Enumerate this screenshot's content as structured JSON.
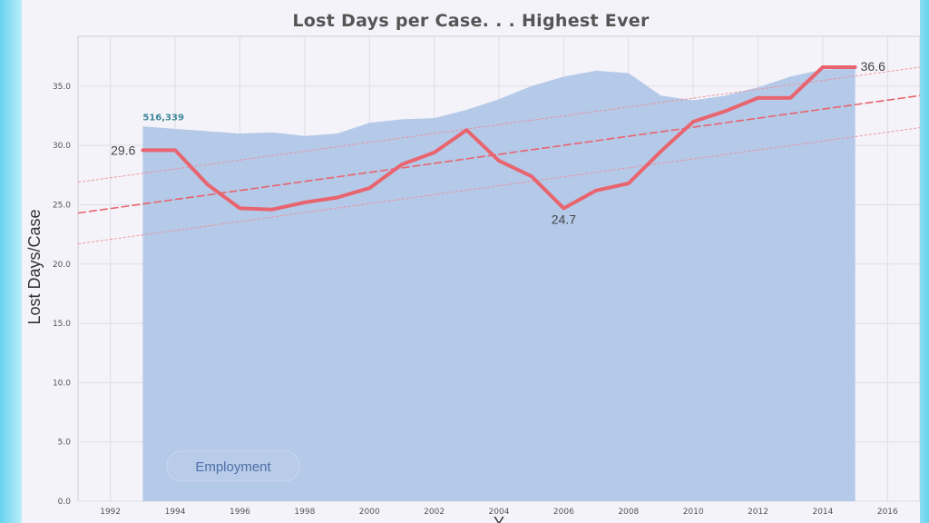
{
  "chart_data": {
    "type": "line",
    "title": "Lost Days per Case. . . Highest Ever",
    "ylabel": "Lost Days/Case",
    "xlabel": "Y",
    "xlim": [
      1991,
      2017
    ],
    "ylim": [
      0,
      39.2
    ],
    "y_ticks": [
      "0.0",
      "5.0",
      "10.0",
      "15.0",
      "20.0",
      "25.0",
      "30.0",
      "35.0"
    ],
    "x_ticks": [
      "1992",
      "1994",
      "1996",
      "1998",
      "2000",
      "2002",
      "2004",
      "2006",
      "2008",
      "2010",
      "2012",
      "2014",
      "2016"
    ],
    "grid": true,
    "series": [
      {
        "values": [
          {
            "x": 1993,
            "y": 29.6
          },
          {
            "x": 1994,
            "y": 29.6
          },
          {
            "x": 1995,
            "y": 26.7
          },
          {
            "x": 1996,
            "y": 24.7
          },
          {
            "x": 1997,
            "y": 24.6
          },
          {
            "x": 1998,
            "y": 25.2
          },
          {
            "x": 1999,
            "y": 25.6
          },
          {
            "x": 2000,
            "y": 26.4
          },
          {
            "x": 2001,
            "y": 28.4
          },
          {
            "x": 2002,
            "y": 29.4
          },
          {
            "x": 2003,
            "y": 31.3
          },
          {
            "x": 2004,
            "y": 28.7
          },
          {
            "x": 2005,
            "y": 27.4
          },
          {
            "x": 2006,
            "y": 24.7
          },
          {
            "x": 2007,
            "y": 26.2
          },
          {
            "x": 2008,
            "y": 26.8
          },
          {
            "x": 2009,
            "y": 29.5
          },
          {
            "x": 2010,
            "y": 32.0
          },
          {
            "x": 2011,
            "y": 32.9
          },
          {
            "x": 2012,
            "y": 34.0
          },
          {
            "x": 2013,
            "y": 34.0
          },
          {
            "x": 2014,
            "y": 36.6
          },
          {
            "x": 2015,
            "y": 36.6
          }
        ],
        "color": "#e8646e"
      },
      {
        "name": "Employment",
        "type": "area",
        "values": [
          {
            "x": 1993,
            "y": 31.6
          },
          {
            "x": 1994,
            "y": 31.4
          },
          {
            "x": 1995,
            "y": 31.2
          },
          {
            "x": 1996,
            "y": 31.0
          },
          {
            "x": 1997,
            "y": 31.1
          },
          {
            "x": 1998,
            "y": 30.8
          },
          {
            "x": 1999,
            "y": 31.0
          },
          {
            "x": 2000,
            "y": 31.9
          },
          {
            "x": 2001,
            "y": 32.2
          },
          {
            "x": 2002,
            "y": 32.3
          },
          {
            "x": 2003,
            "y": 33.0
          },
          {
            "x": 2004,
            "y": 33.9
          },
          {
            "x": 2005,
            "y": 35.0
          },
          {
            "x": 2006,
            "y": 35.8
          },
          {
            "x": 2007,
            "y": 36.3
          },
          {
            "x": 2008,
            "y": 36.1
          },
          {
            "x": 2009,
            "y": 34.2
          },
          {
            "x": 2010,
            "y": 33.8
          },
          {
            "x": 2011,
            "y": 34.2
          },
          {
            "x": 2012,
            "y": 34.9
          },
          {
            "x": 2013,
            "y": 35.8
          },
          {
            "x": 2014,
            "y": 36.4
          },
          {
            "x": 2015,
            "y": 36.5
          }
        ],
        "color": "#b5c9e8"
      }
    ],
    "trend_lines": [
      {
        "kind": "trend",
        "x": [
          1991,
          2017
        ],
        "y": [
          24.3,
          34.2
        ],
        "color": "#e8646e"
      },
      {
        "kind": "upper",
        "x": [
          1991,
          2017
        ],
        "y": [
          26.9,
          36.6
        ],
        "color": "#ef8e95"
      },
      {
        "kind": "lower",
        "x": [
          1991,
          2017
        ],
        "y": [
          21.7,
          31.5
        ],
        "color": "#ef8e95"
      }
    ],
    "point_labels": [
      {
        "x": 1993,
        "y": 29.6,
        "text": "29.6",
        "pos": "left"
      },
      {
        "x": 2006,
        "y": 24.7,
        "text": "24.7",
        "pos": "below"
      },
      {
        "x": 2015,
        "y": 36.6,
        "text": "36.6",
        "pos": "right"
      }
    ],
    "area_label": {
      "x": 1993,
      "y": 31.6,
      "text": "516,339"
    },
    "legend": {
      "text": "Employment",
      "placement": "bottom-left"
    }
  }
}
